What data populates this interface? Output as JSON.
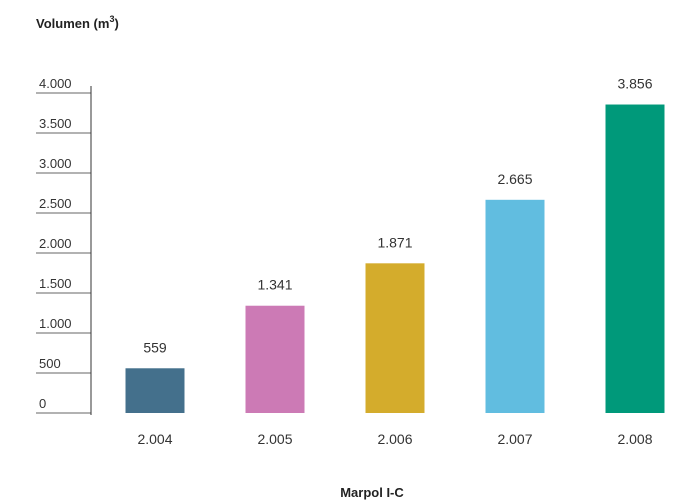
{
  "chart_data": {
    "type": "bar",
    "categories": [
      "2.004",
      "2.005",
      "2.006",
      "2.007",
      "2.008"
    ],
    "values": [
      559,
      1341,
      1871,
      2665,
      3856
    ],
    "value_labels": [
      "559",
      "1.341",
      "1.871",
      "2.665",
      "3.856"
    ],
    "colors": [
      "#44708c",
      "#cc7ab5",
      "#d4ac2c",
      "#61bde0",
      "#00997a"
    ],
    "ylabel": "Volumen (m",
    "ylabel_sup": "3",
    "ylabel_close": ")",
    "xlabel": "Marpol I-C",
    "ylim": [
      0,
      4000
    ],
    "yticks": [
      0,
      500,
      1000,
      1500,
      2000,
      2500,
      3000,
      3500,
      4000
    ],
    "ytick_labels": [
      "0",
      "500",
      "1.000",
      "1.500",
      "2.000",
      "2.500",
      "3.000",
      "3.500",
      "4.000"
    ],
    "grid": false,
    "legend": false
  }
}
